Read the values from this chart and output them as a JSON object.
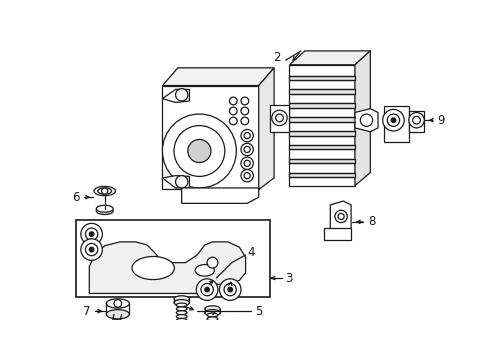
{
  "background_color": "#ffffff",
  "line_color": "#1a1a1a",
  "text_color": "#1a1a1a",
  "figsize": [
    4.89,
    3.6
  ],
  "dpi": 100
}
